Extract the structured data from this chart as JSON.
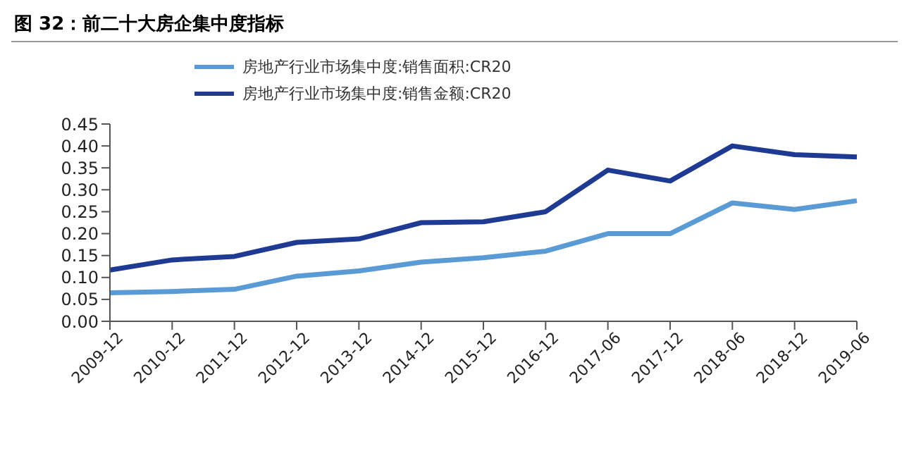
{
  "chart_data": {
    "type": "line",
    "title": "图 32：前二十大房企集中度指标",
    "categories": [
      "2009-12",
      "2010-12",
      "2011-12",
      "2012-12",
      "2013-12",
      "2014-12",
      "2015-12",
      "2016-12",
      "2017-06",
      "2017-12",
      "2018-06",
      "2018-12",
      "2019-06"
    ],
    "series": [
      {
        "name": "房地产行业市场集中度:销售面积:CR20",
        "color": "#5b9bd5",
        "values": [
          0.065,
          0.068,
          0.073,
          0.103,
          0.115,
          0.135,
          0.145,
          0.16,
          0.2,
          0.2,
          0.27,
          0.255,
          0.275
        ]
      },
      {
        "name": "房地产行业市场集中度:销售金额:CR20",
        "color": "#1f3a93",
        "values": [
          0.117,
          0.14,
          0.148,
          0.18,
          0.188,
          0.225,
          0.227,
          0.25,
          0.345,
          0.32,
          0.4,
          0.38,
          0.375
        ]
      }
    ],
    "ylim": [
      0,
      0.45
    ],
    "yticks": [
      {
        "value": 0,
        "label": "0.00"
      },
      0.05,
      {
        "value": 0.1,
        "label": "0.10"
      },
      0.15,
      {
        "value": 0.2,
        "label": "0.20"
      },
      0.25,
      {
        "value": 0.3,
        "label": "0.30"
      },
      0.35,
      {
        "value": 0.4,
        "label": "0.40"
      },
      0.45
    ],
    "grid": false,
    "legend": "top",
    "marker": "none",
    "line_style": "solid"
  }
}
